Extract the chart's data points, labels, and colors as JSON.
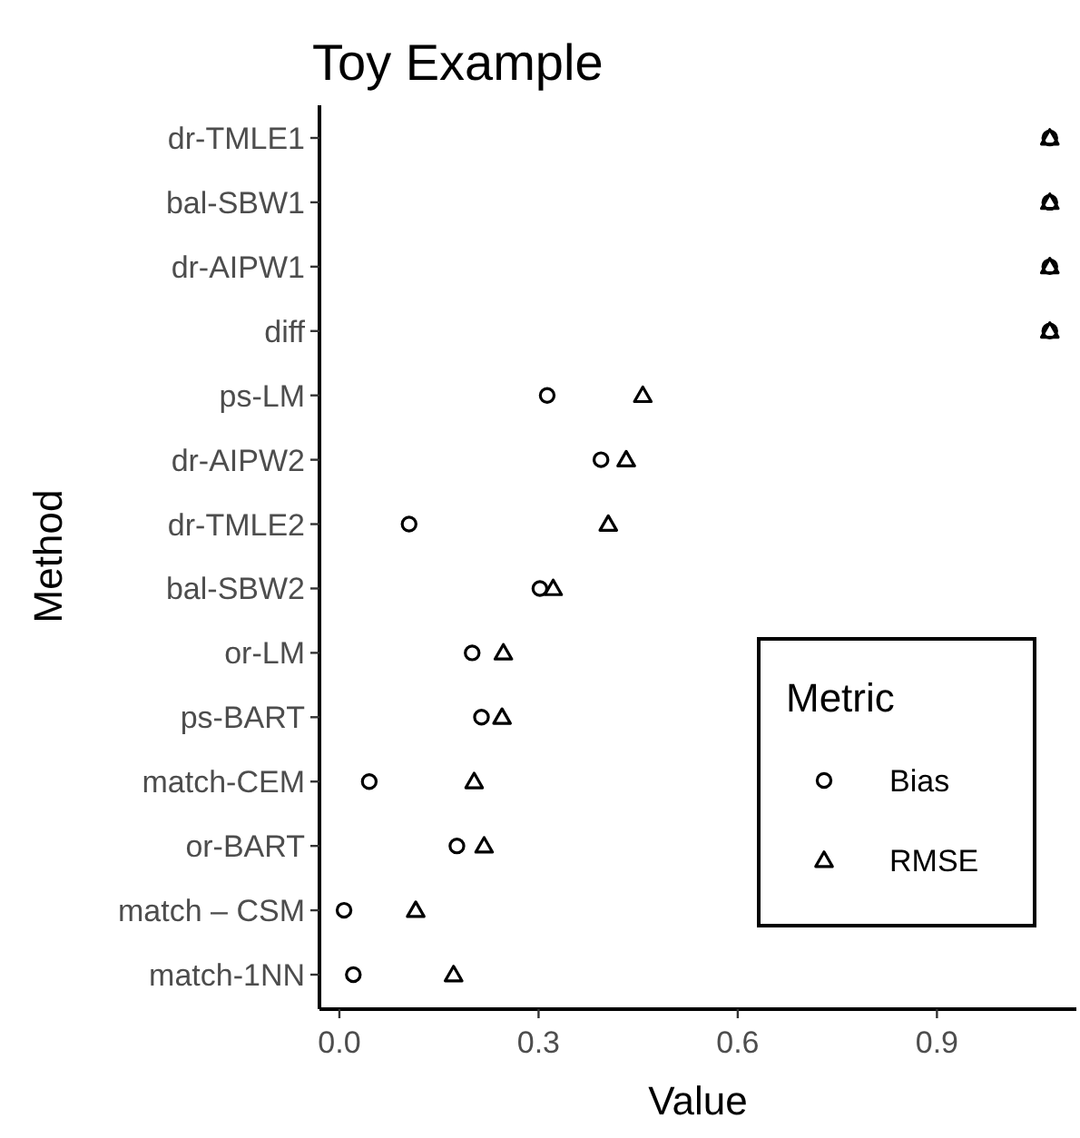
{
  "chart_data": {
    "type": "scatter",
    "orientation": "horizontal",
    "title": "Toy Example",
    "xlabel": "Value",
    "ylabel": "Method",
    "legend_title": "Metric",
    "legend": "bottom right",
    "grid": false,
    "categories": [
      "dr-TMLE1",
      "bal-SBW1",
      "dr-AIPW1",
      "diff",
      "ps-LM",
      "dr-AIPW2",
      "dr-TMLE2",
      "bal-SBW2",
      "or-LM",
      "ps-BART",
      "match-CEM",
      "or-BART",
      "match – CSM",
      "match-1NN"
    ],
    "xlim": [
      -0.03,
      1.11
    ],
    "xticks": [
      {
        "value": 0,
        "label": "0.0"
      },
      0.3,
      0.6,
      0.9
    ],
    "series": [
      {
        "name": "Bias",
        "color": "#000000",
        "marker": "circle",
        "values": [
          1.07,
          1.07,
          1.07,
          1.07,
          0.313,
          0.394,
          0.105,
          0.302,
          0.2,
          0.214,
          0.045,
          0.177,
          0.007,
          0.021
        ]
      },
      {
        "name": "RMSE",
        "color": "#000000",
        "marker": "triangle",
        "values": [
          1.07,
          1.07,
          1.07,
          1.07,
          0.457,
          0.432,
          0.405,
          0.322,
          0.247,
          0.245,
          0.203,
          0.218,
          0.115,
          0.172
        ]
      }
    ]
  }
}
